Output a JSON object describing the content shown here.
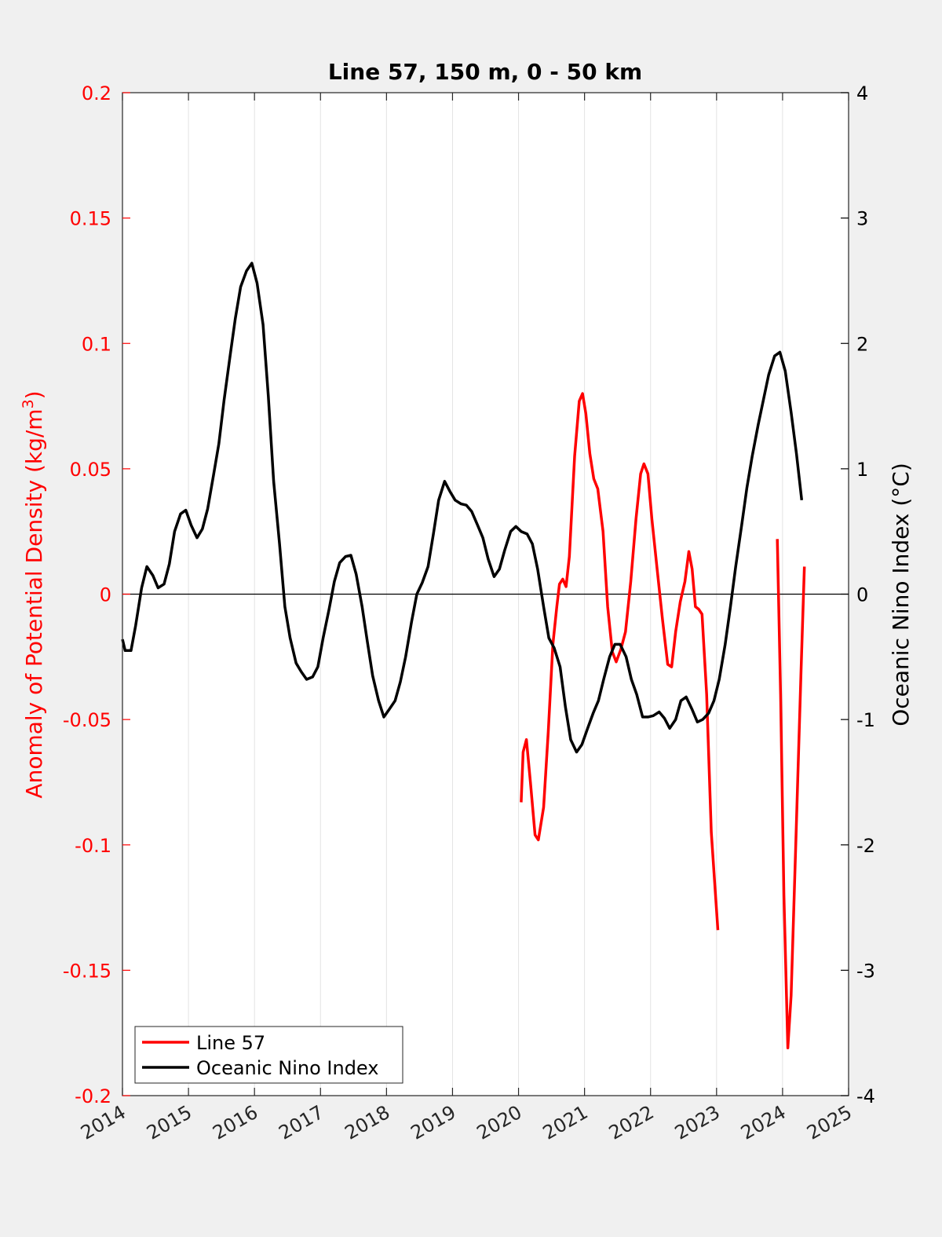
{
  "chart_data": {
    "type": "line",
    "title": "Line 57, 150 m, 0 - 50 km",
    "xlabel": "",
    "ylabel_left": "Anomaly of Potential Density (kg/m",
    "ylabel_left_sup": "3",
    "ylabel_left_close": ")",
    "ylabel_right": "Oceanic Nino Index (°C)",
    "xlim": [
      2014,
      2025
    ],
    "ylim_left": [
      -0.2,
      0.2
    ],
    "ylim_right": [
      -4,
      4
    ],
    "x_ticks": [
      "2014",
      "2015",
      "2016",
      "2017",
      "2018",
      "2019",
      "2020",
      "2021",
      "2022",
      "2023",
      "2024",
      "2025"
    ],
    "y_left_ticks": [
      "-0.2",
      "-0.15",
      "-0.1",
      "-0.05",
      "0",
      "0.05",
      "0.1",
      "0.15",
      "0.2"
    ],
    "y_right_ticks": [
      "-4",
      "-3",
      "-2",
      "-1",
      "0",
      "1",
      "2",
      "3",
      "4"
    ],
    "grid": "vertical",
    "zero_line": true,
    "legend_position": "bottom-left",
    "colors": {
      "line57": "#ff0000",
      "oni": "#000000",
      "left_axis": "#ff0000",
      "right_axis": "#000000"
    },
    "series": [
      {
        "name": "Line 57",
        "axis": "left",
        "color": "#ff0000",
        "segments": [
          [
            [
              2020.04,
              -0.083
            ],
            [
              2020.07,
              -0.063
            ],
            [
              2020.12,
              -0.058
            ],
            [
              2020.18,
              -0.075
            ],
            [
              2020.25,
              -0.096
            ],
            [
              2020.3,
              -0.098
            ],
            [
              2020.38,
              -0.085
            ],
            [
              2020.45,
              -0.055
            ],
            [
              2020.52,
              -0.02
            ],
            [
              2020.58,
              -0.005
            ],
            [
              2020.62,
              0.004
            ],
            [
              2020.67,
              0.006
            ],
            [
              2020.72,
              0.003
            ],
            [
              2020.77,
              0.015
            ],
            [
              2020.85,
              0.055
            ],
            [
              2020.92,
              0.077
            ],
            [
              2020.97,
              0.08
            ],
            [
              2021.02,
              0.072
            ],
            [
              2021.08,
              0.056
            ],
            [
              2021.14,
              0.046
            ],
            [
              2021.2,
              0.042
            ],
            [
              2021.28,
              0.025
            ],
            [
              2021.35,
              -0.005
            ],
            [
              2021.42,
              -0.023
            ],
            [
              2021.48,
              -0.027
            ],
            [
              2021.55,
              -0.022
            ],
            [
              2021.62,
              -0.015
            ],
            [
              2021.7,
              0.005
            ],
            [
              2021.78,
              0.03
            ],
            [
              2021.85,
              0.048
            ],
            [
              2021.9,
              0.052
            ],
            [
              2021.96,
              0.048
            ],
            [
              2022.02,
              0.03
            ],
            [
              2022.1,
              0.01
            ],
            [
              2022.18,
              -0.01
            ],
            [
              2022.26,
              -0.028
            ],
            [
              2022.32,
              -0.029
            ],
            [
              2022.38,
              -0.015
            ],
            [
              2022.45,
              -0.003
            ],
            [
              2022.52,
              0.005
            ],
            [
              2022.58,
              0.017
            ],
            [
              2022.63,
              0.01
            ],
            [
              2022.68,
              -0.005
            ],
            [
              2022.73,
              -0.006
            ],
            [
              2022.78,
              -0.008
            ],
            [
              2022.85,
              -0.04
            ],
            [
              2022.92,
              -0.095
            ],
            [
              2023.02,
              -0.134
            ]
          ],
          [
            [
              2023.92,
              0.022
            ],
            [
              2023.97,
              -0.04
            ],
            [
              2024.02,
              -0.12
            ],
            [
              2024.08,
              -0.181
            ],
            [
              2024.13,
              -0.16
            ],
            [
              2024.2,
              -0.1
            ],
            [
              2024.28,
              -0.03
            ],
            [
              2024.33,
              0.011
            ]
          ]
        ]
      },
      {
        "name": "Oceanic Nino Index",
        "axis": "right",
        "color": "#000000",
        "segments": [
          [
            [
              2014.0,
              -0.36
            ],
            [
              2014.04,
              -0.45
            ],
            [
              2014.13,
              -0.45
            ],
            [
              2014.2,
              -0.25
            ],
            [
              2014.29,
              0.05
            ],
            [
              2014.37,
              0.22
            ],
            [
              2014.46,
              0.15
            ],
            [
              2014.54,
              0.05
            ],
            [
              2014.63,
              0.08
            ],
            [
              2014.71,
              0.24
            ],
            [
              2014.79,
              0.5
            ],
            [
              2014.88,
              0.64
            ],
            [
              2014.96,
              0.67
            ],
            [
              2015.04,
              0.55
            ],
            [
              2015.13,
              0.45
            ],
            [
              2015.21,
              0.52
            ],
            [
              2015.29,
              0.68
            ],
            [
              2015.38,
              0.95
            ],
            [
              2015.46,
              1.2
            ],
            [
              2015.54,
              1.55
            ],
            [
              2015.63,
              1.9
            ],
            [
              2015.71,
              2.2
            ],
            [
              2015.79,
              2.45
            ],
            [
              2015.88,
              2.58
            ],
            [
              2015.96,
              2.64
            ],
            [
              2016.04,
              2.48
            ],
            [
              2016.13,
              2.15
            ],
            [
              2016.21,
              1.58
            ],
            [
              2016.29,
              0.9
            ],
            [
              2016.38,
              0.4
            ],
            [
              2016.46,
              -0.1
            ],
            [
              2016.54,
              -0.35
            ],
            [
              2016.63,
              -0.55
            ],
            [
              2016.71,
              -0.62
            ],
            [
              2016.79,
              -0.68
            ],
            [
              2016.88,
              -0.66
            ],
            [
              2016.96,
              -0.58
            ],
            [
              2017.04,
              -0.35
            ],
            [
              2017.13,
              -0.12
            ],
            [
              2017.21,
              0.1
            ],
            [
              2017.29,
              0.25
            ],
            [
              2017.38,
              0.3
            ],
            [
              2017.46,
              0.31
            ],
            [
              2017.54,
              0.16
            ],
            [
              2017.63,
              -0.1
            ],
            [
              2017.71,
              -0.38
            ],
            [
              2017.79,
              -0.65
            ],
            [
              2017.88,
              -0.85
            ],
            [
              2017.96,
              -0.98
            ],
            [
              2018.04,
              -0.92
            ],
            [
              2018.13,
              -0.85
            ],
            [
              2018.21,
              -0.7
            ],
            [
              2018.29,
              -0.5
            ],
            [
              2018.38,
              -0.22
            ],
            [
              2018.46,
              0.0
            ],
            [
              2018.54,
              0.09
            ],
            [
              2018.63,
              0.22
            ],
            [
              2018.71,
              0.48
            ],
            [
              2018.79,
              0.75
            ],
            [
              2018.88,
              0.9
            ],
            [
              2018.96,
              0.82
            ],
            [
              2019.04,
              0.75
            ],
            [
              2019.13,
              0.72
            ],
            [
              2019.21,
              0.71
            ],
            [
              2019.29,
              0.66
            ],
            [
              2019.38,
              0.55
            ],
            [
              2019.46,
              0.45
            ],
            [
              2019.54,
              0.28
            ],
            [
              2019.63,
              0.14
            ],
            [
              2019.71,
              0.2
            ],
            [
              2019.79,
              0.35
            ],
            [
              2019.88,
              0.5
            ],
            [
              2019.96,
              0.54
            ],
            [
              2020.04,
              0.5
            ],
            [
              2020.13,
              0.48
            ],
            [
              2020.21,
              0.4
            ],
            [
              2020.29,
              0.2
            ],
            [
              2020.38,
              -0.1
            ],
            [
              2020.46,
              -0.35
            ],
            [
              2020.54,
              -0.43
            ],
            [
              2020.63,
              -0.58
            ],
            [
              2020.71,
              -0.9
            ],
            [
              2020.79,
              -1.16
            ],
            [
              2020.88,
              -1.26
            ],
            [
              2020.96,
              -1.2
            ],
            [
              2021.04,
              -1.08
            ],
            [
              2021.13,
              -0.95
            ],
            [
              2021.21,
              -0.85
            ],
            [
              2021.29,
              -0.68
            ],
            [
              2021.38,
              -0.5
            ],
            [
              2021.46,
              -0.4
            ],
            [
              2021.54,
              -0.4
            ],
            [
              2021.63,
              -0.5
            ],
            [
              2021.71,
              -0.68
            ],
            [
              2021.79,
              -0.8
            ],
            [
              2021.88,
              -0.98
            ],
            [
              2021.96,
              -0.98
            ],
            [
              2022.04,
              -0.97
            ],
            [
              2022.13,
              -0.94
            ],
            [
              2022.21,
              -0.99
            ],
            [
              2022.29,
              -1.07
            ],
            [
              2022.38,
              -1.0
            ],
            [
              2022.46,
              -0.85
            ],
            [
              2022.54,
              -0.82
            ],
            [
              2022.63,
              -0.92
            ],
            [
              2022.71,
              -1.02
            ],
            [
              2022.79,
              -1.0
            ],
            [
              2022.88,
              -0.95
            ],
            [
              2022.96,
              -0.85
            ],
            [
              2023.04,
              -0.68
            ],
            [
              2023.13,
              -0.4
            ],
            [
              2023.21,
              -0.1
            ],
            [
              2023.29,
              0.22
            ],
            [
              2023.38,
              0.55
            ],
            [
              2023.46,
              0.85
            ],
            [
              2023.54,
              1.1
            ],
            [
              2023.63,
              1.35
            ],
            [
              2023.71,
              1.55
            ],
            [
              2023.79,
              1.75
            ],
            [
              2023.88,
              1.9
            ],
            [
              2023.96,
              1.93
            ],
            [
              2024.04,
              1.78
            ],
            [
              2024.13,
              1.45
            ],
            [
              2024.21,
              1.12
            ],
            [
              2024.29,
              0.75
            ]
          ]
        ]
      }
    ]
  }
}
